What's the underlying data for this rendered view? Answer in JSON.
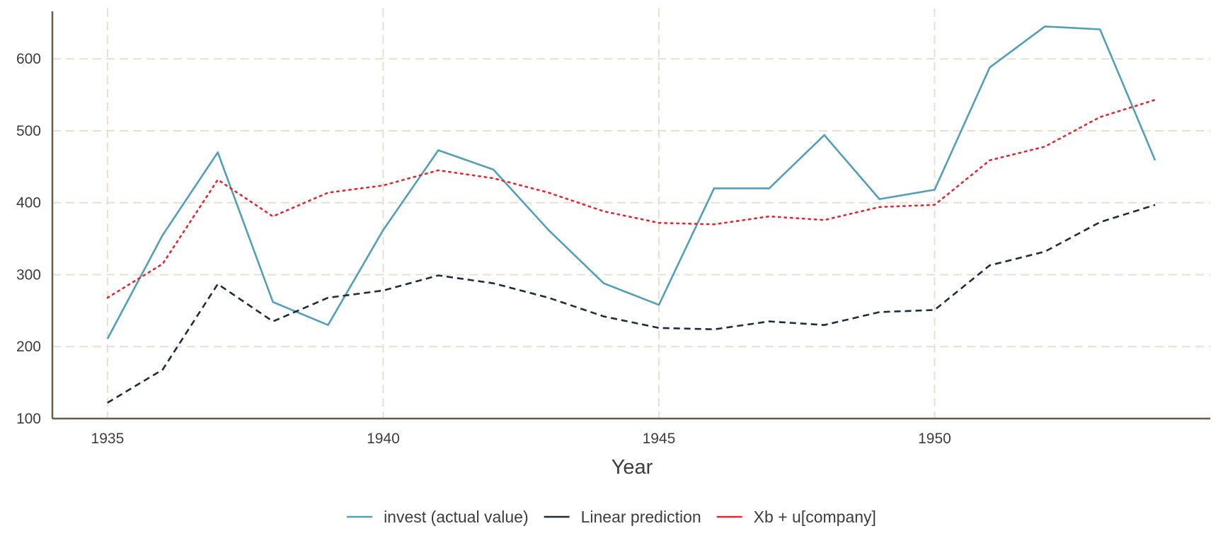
{
  "chart_data": {
    "type": "line",
    "title": "",
    "xlabel": "Year",
    "ylabel": "",
    "xlim": [
      1934,
      1955
    ],
    "ylim": [
      100,
      670
    ],
    "x_ticks": [
      1935,
      1940,
      1945,
      1950
    ],
    "y_ticks": [
      100,
      200,
      300,
      400,
      500,
      600
    ],
    "grid": true,
    "legend_position": "bottom",
    "x": [
      1935,
      1936,
      1937,
      1938,
      1939,
      1940,
      1941,
      1942,
      1943,
      1944,
      1945,
      1946,
      1947,
      1948,
      1949,
      1950,
      1951,
      1952,
      1953,
      1954
    ],
    "series": [
      {
        "name": "invest (actual value)",
        "color": "#52a0b8",
        "style": "solid",
        "values": [
          211,
          355,
          470,
          262,
          230,
          362,
          473,
          446,
          362,
          288,
          258,
          420,
          420,
          494,
          405,
          418,
          588,
          645,
          641,
          459
        ]
      },
      {
        "name": "Linear prediction",
        "color": "#1f2d38",
        "style": "dashed",
        "values": [
          122,
          168,
          287,
          235,
          268,
          278,
          299,
          288,
          268,
          242,
          226,
          224,
          235,
          230,
          248,
          251,
          313,
          332,
          373,
          397
        ]
      },
      {
        "name": "Xb + u[company]",
        "color": "#e0282e",
        "style": "dotted",
        "values": [
          268,
          315,
          432,
          381,
          414,
          424,
          445,
          434,
          414,
          388,
          372,
          370,
          381,
          376,
          394,
          397,
          459,
          478,
          519,
          543
        ]
      }
    ]
  }
}
